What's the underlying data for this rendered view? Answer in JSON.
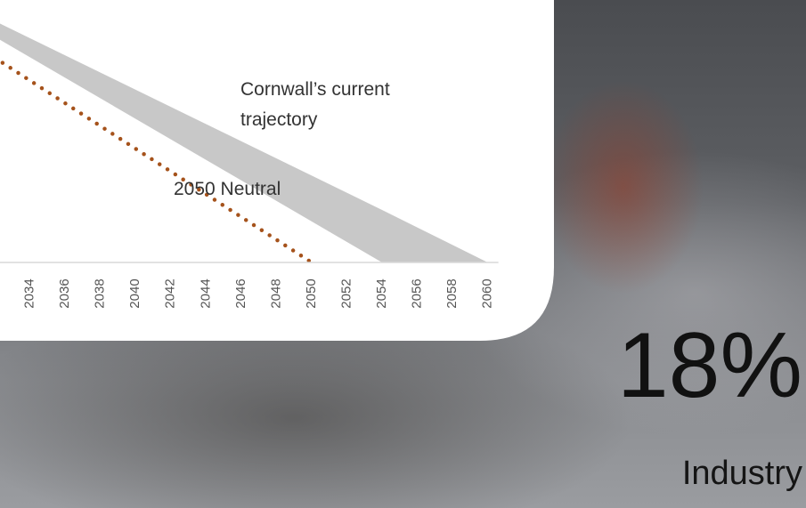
{
  "chart_data": {
    "type": "line",
    "xlim": [
      2032.3,
      2062
    ],
    "xticks": [
      2034,
      2036,
      2038,
      2040,
      2042,
      2044,
      2046,
      2048,
      2050,
      2052,
      2054,
      2056,
      2058,
      2060
    ],
    "ylim": [
      0,
      100
    ],
    "series": [
      {
        "name": "Cornwall’s current trajectory",
        "color": "#c8c8c8",
        "style": "band",
        "x": [
          2032,
          2054,
          2060
        ],
        "values": [
          92,
          20,
          0
        ],
        "lower": [
          86,
          0,
          0
        ]
      },
      {
        "name": "2050 Neutral",
        "color": "#a5521b",
        "style": "dotted",
        "x": [
          2032,
          2050
        ],
        "values": [
          78,
          0
        ]
      }
    ]
  },
  "overlay": {
    "stat": "18%",
    "label": "Industry"
  }
}
